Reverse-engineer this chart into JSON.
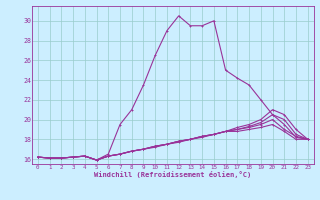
{
  "xlabel": "Windchill (Refroidissement éolien,°C)",
  "background_color": "#cceeff",
  "grid_color": "#99cccc",
  "line_color": "#993399",
  "xlim": [
    -0.5,
    23.5
  ],
  "ylim": [
    15.5,
    31.5
  ],
  "xticks": [
    0,
    1,
    2,
    3,
    4,
    5,
    6,
    7,
    8,
    9,
    10,
    11,
    12,
    13,
    14,
    15,
    16,
    17,
    18,
    19,
    20,
    21,
    22,
    23
  ],
  "yticks": [
    16,
    18,
    20,
    22,
    24,
    26,
    28,
    30
  ],
  "series": [
    [
      16.2,
      16.1,
      16.1,
      16.2,
      16.3,
      15.9,
      16.5,
      19.5,
      21.0,
      23.5,
      26.5,
      29.0,
      30.5,
      29.5,
      29.5,
      30.0,
      25.0,
      24.2,
      23.5,
      22.0,
      20.5,
      19.5,
      18.2,
      18.0
    ],
    [
      16.2,
      16.1,
      16.1,
      16.2,
      16.3,
      15.9,
      16.3,
      16.5,
      16.8,
      17.0,
      17.3,
      17.5,
      17.8,
      18.0,
      18.3,
      18.5,
      18.8,
      19.2,
      19.5,
      20.0,
      21.0,
      20.5,
      19.0,
      18.0
    ],
    [
      16.2,
      16.1,
      16.1,
      16.2,
      16.3,
      15.9,
      16.3,
      16.5,
      16.8,
      17.0,
      17.3,
      17.5,
      17.8,
      18.0,
      18.3,
      18.5,
      18.8,
      19.0,
      19.3,
      19.7,
      20.5,
      20.0,
      18.5,
      18.0
    ],
    [
      16.2,
      16.1,
      16.1,
      16.2,
      16.3,
      15.9,
      16.3,
      16.5,
      16.8,
      17.0,
      17.3,
      17.5,
      17.8,
      18.0,
      18.3,
      18.5,
      18.8,
      19.0,
      19.2,
      19.5,
      20.0,
      19.0,
      18.3,
      18.0
    ],
    [
      16.2,
      16.1,
      16.1,
      16.2,
      16.3,
      15.9,
      16.3,
      16.5,
      16.8,
      17.0,
      17.2,
      17.5,
      17.7,
      18.0,
      18.2,
      18.5,
      18.8,
      18.8,
      19.0,
      19.2,
      19.5,
      18.8,
      18.0,
      18.0
    ]
  ],
  "markersize": 2.0,
  "linewidth": 0.8
}
